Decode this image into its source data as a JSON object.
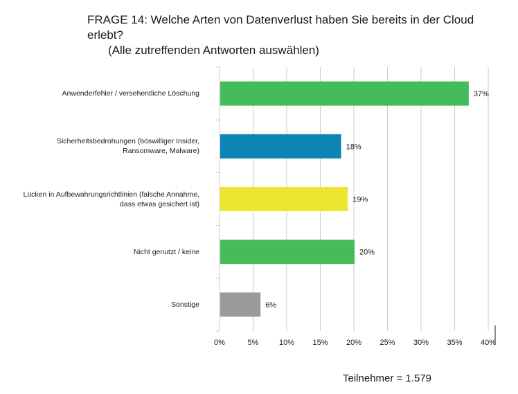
{
  "title": {
    "line1": "FRAGE 14: Welche Arten von Datenverlust haben Sie bereits in der Cloud erlebt?",
    "line2": "(Alle zutreffenden Antworten auswählen)"
  },
  "footer": "Teilnehmer = 1.579",
  "chart_data": {
    "type": "bar",
    "orientation": "horizontal",
    "categories": [
      "Anwenderfehler / versehentliche Löschung",
      "Sicherheitsbedrohungen (böswilliger Insider, Ransomware, Malware)",
      "Lücken in Aufbewahrungsrichtlinien (falsche Annahme, dass etwas gesichert ist)",
      "Nicht genutzt / keine",
      "Sonstige"
    ],
    "category_lines": [
      [
        "Anwenderfehler / versehentliche Löschung"
      ],
      [
        "Sicherheitsbedrohungen (böswilliger Insider,",
        "Ransomware, Malware)"
      ],
      [
        "Lücken in Aufbewahrungsrichtlinien (falsche Annahme,",
        "dass etwas gesichert ist)"
      ],
      [
        "Nicht genutzt / keine"
      ],
      [
        "Sonstige"
      ]
    ],
    "values": [
      37,
      18,
      19,
      20,
      6
    ],
    "value_labels": [
      "37%",
      "18%",
      "19%",
      "20%",
      "6%"
    ],
    "bar_colors": [
      "#46bb5a",
      "#0d84b4",
      "#eee62e",
      "#46bb5a",
      "#999a9c"
    ],
    "xlim": [
      0,
      40
    ],
    "xticks": [
      0,
      5,
      10,
      15,
      20,
      25,
      30,
      35,
      40
    ],
    "xtick_labels": [
      "0%",
      "5%",
      "10%",
      "15%",
      "20%",
      "25%",
      "30%",
      "35%",
      "40%"
    ],
    "grid": true,
    "gridline_color": "#c9c9c9"
  }
}
